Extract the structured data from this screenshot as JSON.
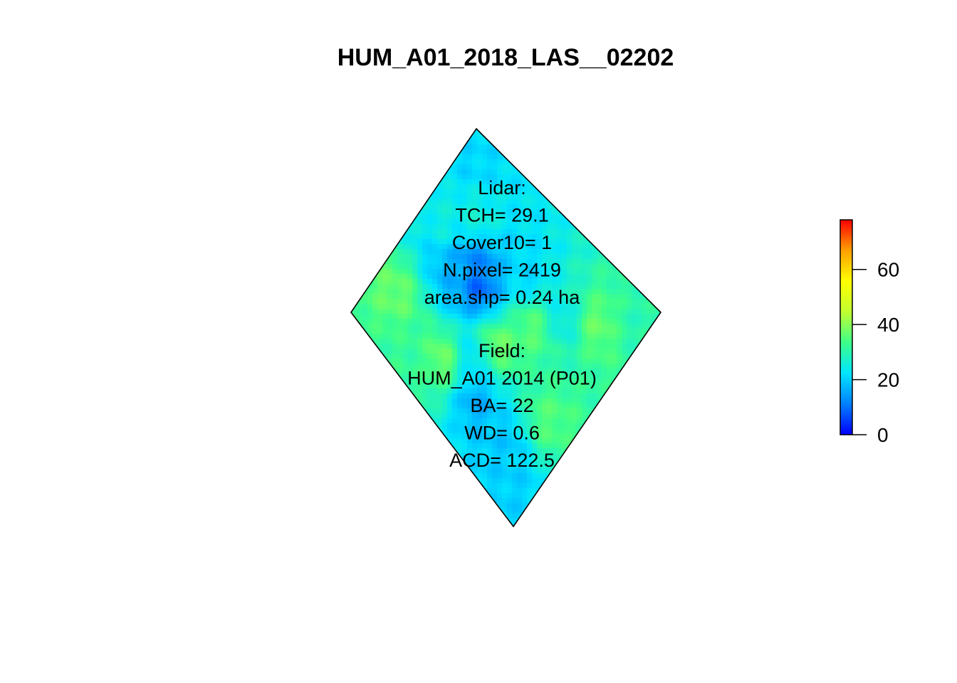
{
  "chart_data": {
    "type": "heatmap",
    "title": "HUM_A01_2018_LAS__02202",
    "xlabel": "",
    "ylabel": "",
    "legend": {
      "placement": "right",
      "range": [
        0,
        78
      ],
      "ticks": [
        0,
        20,
        40,
        60
      ],
      "tick_labels": [
        "0",
        "20",
        "40",
        "60"
      ],
      "colors": [
        "#0000ff",
        "#0080ff",
        "#00e5ff",
        "#3dff8a",
        "#c0ff30",
        "#ffff00",
        "#ffa000",
        "#ff0000"
      ]
    },
    "lidar_annotation": [
      "Lidar:",
      "TCH= 29.1",
      "Cover10= 1",
      "N.pixel= 2419",
      "area.shp= 0.24 ha"
    ],
    "field_annotation": [
      "Field:",
      "HUM_A01 2014 (P01)",
      "BA= 22",
      "WD= 0.6",
      "ACD= 122.5"
    ],
    "canopy_height_hotspots": [
      {
        "u": 0.06,
        "v": 0.12,
        "value": 21
      },
      {
        "u": 0.2,
        "v": 0.28,
        "value": 26
      },
      {
        "u": 0.3,
        "v": 0.42,
        "value": 12
      },
      {
        "u": 0.35,
        "v": 0.48,
        "value": 8
      },
      {
        "u": 0.26,
        "v": 0.52,
        "value": 17
      },
      {
        "u": 0.55,
        "v": 0.58,
        "value": 38
      },
      {
        "u": 0.62,
        "v": 0.42,
        "value": 36
      },
      {
        "u": 0.7,
        "v": 0.3,
        "value": 24
      },
      {
        "u": 0.82,
        "v": 0.22,
        "value": 37
      },
      {
        "u": 0.88,
        "v": 0.62,
        "value": 35
      },
      {
        "u": 0.6,
        "v": 0.8,
        "value": 16
      },
      {
        "u": 0.78,
        "v": 0.82,
        "value": 19
      },
      {
        "u": 0.4,
        "v": 0.8,
        "value": 38
      },
      {
        "u": 0.3,
        "v": 0.9,
        "value": 32
      },
      {
        "u": 0.1,
        "v": 0.78,
        "value": 37
      },
      {
        "u": 0.5,
        "v": 0.7,
        "value": 22
      },
      {
        "u": 0.48,
        "v": 0.3,
        "value": 21
      },
      {
        "u": 0.1,
        "v": 0.4,
        "value": 25
      },
      {
        "u": 0.9,
        "v": 0.9,
        "value": 20
      },
      {
        "u": 0.95,
        "v": 0.1,
        "value": 30
      }
    ],
    "base_value": 27
  }
}
